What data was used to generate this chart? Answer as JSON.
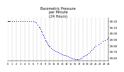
{
  "title": "Barometric Pressure\nper Minute\n(24 Hours)",
  "title_fontsize": 3.5,
  "bg_color": "#ffffff",
  "plot_bg_color": "#ffffff",
  "grid_color": "#b0b0b0",
  "dot_color": "#0000cc",
  "dot_size": 0.5,
  "x_min": 0,
  "x_max": 1440,
  "y_min": 29.55,
  "y_max": 30.25,
  "ylabel_fontsize": 2.8,
  "xlabel_fontsize": 2.5,
  "x_ticks": [
    0,
    60,
    120,
    180,
    240,
    300,
    360,
    420,
    480,
    540,
    600,
    660,
    720,
    780,
    840,
    900,
    960,
    1020,
    1080,
    1140,
    1200,
    1260,
    1320,
    1380,
    1440
  ],
  "x_tick_labels": [
    "0",
    "1",
    "2",
    "3",
    "4",
    "5",
    "6",
    "7",
    "8",
    "9",
    "10",
    "11",
    "12",
    "13",
    "14",
    "15",
    "16",
    "17",
    "18",
    "19",
    "20",
    "21",
    "22",
    "23",
    "24"
  ],
  "y_ticks": [
    29.6,
    29.7,
    29.8,
    29.9,
    30.0,
    30.1,
    30.2
  ],
  "y_tick_labels": [
    "29.60",
    "29.70",
    "29.80",
    "29.90",
    "30.00",
    "30.10",
    "30.20"
  ],
  "data_x": [
    0,
    10,
    20,
    30,
    60,
    90,
    120,
    150,
    180,
    210,
    240,
    270,
    300,
    330,
    360,
    390,
    410,
    430,
    450,
    460,
    470,
    480,
    490,
    500,
    510,
    520,
    530,
    540,
    550,
    560,
    570,
    580,
    590,
    600,
    620,
    640,
    660,
    680,
    700,
    720,
    740,
    760,
    780,
    800,
    820,
    840,
    860,
    880,
    900,
    920,
    940,
    960,
    980,
    1000,
    1020,
    1040,
    1060,
    1080,
    1100,
    1120,
    1140,
    1160,
    1180,
    1200,
    1220,
    1240,
    1260,
    1300,
    1330,
    1360,
    1390,
    1420,
    1440
  ],
  "data_y": [
    30.2,
    30.2,
    30.2,
    30.2,
    30.2,
    30.2,
    30.2,
    30.2,
    30.2,
    30.2,
    30.2,
    30.2,
    30.2,
    30.2,
    30.2,
    30.19,
    30.17,
    30.14,
    30.11,
    30.09,
    30.07,
    30.04,
    30.02,
    29.99,
    29.97,
    29.94,
    29.92,
    29.89,
    29.87,
    29.85,
    29.83,
    29.81,
    29.79,
    29.78,
    29.76,
    29.74,
    29.72,
    29.71,
    29.7,
    29.69,
    29.68,
    29.67,
    29.66,
    29.65,
    29.64,
    29.63,
    29.62,
    29.61,
    29.6,
    29.59,
    29.59,
    29.58,
    29.58,
    29.58,
    29.58,
    29.59,
    29.6,
    29.62,
    29.63,
    29.65,
    29.66,
    29.68,
    29.7,
    29.72,
    29.75,
    29.77,
    29.79,
    29.82,
    29.84,
    29.87,
    29.89,
    29.91,
    29.93
  ]
}
